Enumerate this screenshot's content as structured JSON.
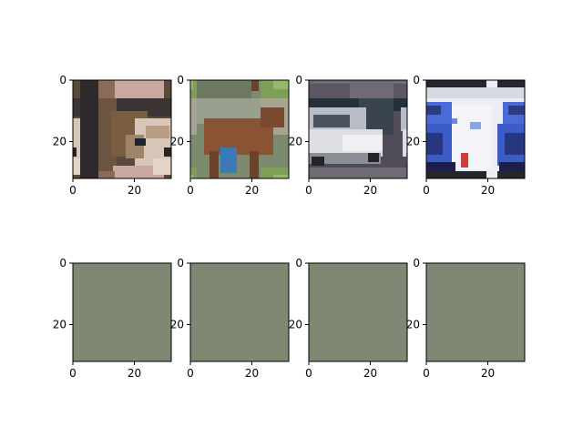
{
  "chart_data": [
    {
      "type": "image",
      "title": "",
      "xlabel": "",
      "ylabel": "",
      "content": "puppy face, brown and white fur",
      "xlim": [
        0,
        32
      ],
      "ylim": [
        32,
        0
      ],
      "xticks": [
        0,
        20
      ],
      "yticks": [
        0,
        20
      ],
      "xtick_labels": [
        "0",
        "20"
      ],
      "ytick_labels": [
        "0",
        "20"
      ]
    },
    {
      "type": "image",
      "title": "",
      "xlabel": "",
      "ylabel": "",
      "content": "brown horse standing on grass",
      "xlim": [
        0,
        32
      ],
      "ylim": [
        32,
        0
      ],
      "xticks": [
        0,
        20
      ],
      "yticks": [
        0,
        20
      ],
      "xtick_labels": [
        "0",
        "20"
      ],
      "ytick_labels": [
        "0",
        "20"
      ]
    },
    {
      "type": "image",
      "title": "",
      "xlabel": "",
      "ylabel": "",
      "content": "silver car on road",
      "xlim": [
        0,
        32
      ],
      "ylim": [
        32,
        0
      ],
      "xticks": [
        0,
        20
      ],
      "yticks": [
        0,
        20
      ],
      "xtick_labels": [
        "0",
        "20"
      ],
      "ytick_labels": [
        "0",
        "20"
      ]
    },
    {
      "type": "image",
      "title": "",
      "xlabel": "",
      "ylabel": "",
      "content": "blue truck cab with white trailer",
      "xlim": [
        0,
        32
      ],
      "ylim": [
        32,
        0
      ],
      "xticks": [
        0,
        20
      ],
      "yticks": [
        0,
        20
      ],
      "xtick_labels": [
        "0",
        "20"
      ],
      "ytick_labels": [
        "0",
        "20"
      ]
    },
    {
      "type": "image",
      "title": "",
      "xlabel": "",
      "ylabel": "",
      "content": "uniform grey-green",
      "fill_color": "#7e8873",
      "xlim": [
        0,
        32
      ],
      "ylim": [
        32,
        0
      ],
      "xticks": [
        0,
        20
      ],
      "yticks": [
        0,
        20
      ],
      "xtick_labels": [
        "0",
        "20"
      ],
      "ytick_labels": [
        "0",
        "20"
      ]
    },
    {
      "type": "image",
      "title": "",
      "xlabel": "",
      "ylabel": "",
      "content": "uniform grey-green",
      "fill_color": "#7e8873",
      "xlim": [
        0,
        32
      ],
      "ylim": [
        32,
        0
      ],
      "xticks": [
        0,
        20
      ],
      "yticks": [
        0,
        20
      ],
      "xtick_labels": [
        "0",
        "20"
      ],
      "ytick_labels": [
        "0",
        "20"
      ]
    },
    {
      "type": "image",
      "title": "",
      "xlabel": "",
      "ylabel": "",
      "content": "uniform grey-green",
      "fill_color": "#7e8873",
      "xlim": [
        0,
        32
      ],
      "ylim": [
        32,
        0
      ],
      "xticks": [
        0,
        20
      ],
      "yticks": [
        0,
        20
      ],
      "xtick_labels": [
        "0",
        "20"
      ],
      "ytick_labels": [
        "0",
        "20"
      ]
    },
    {
      "type": "image",
      "title": "",
      "xlabel": "",
      "ylabel": "",
      "content": "uniform grey-green",
      "fill_color": "#7e8873",
      "xlim": [
        0,
        32
      ],
      "ylim": [
        32,
        0
      ],
      "xticks": [
        0,
        20
      ],
      "yticks": [
        0,
        20
      ],
      "xtick_labels": [
        "0",
        "20"
      ],
      "ytick_labels": [
        "0",
        "20"
      ]
    }
  ]
}
